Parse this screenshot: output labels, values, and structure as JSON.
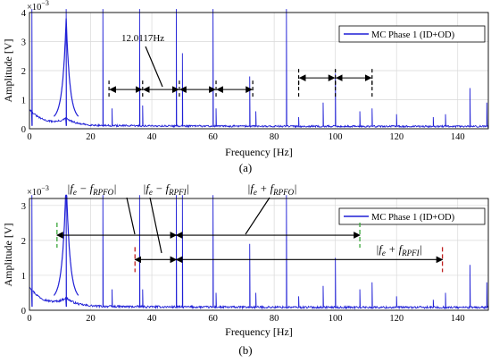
{
  "charts": [
    {
      "id": "a",
      "caption": "(a)",
      "exponent_label": "×10",
      "exponent_power": "−3",
      "ylabel": "Amplitude [V]",
      "xlabel": "Frequency [Hz]",
      "xlim": [
        0,
        150
      ],
      "ylim": [
        0,
        4
      ],
      "xticks": [
        "0",
        "20",
        "40",
        "60",
        "80",
        "100",
        "120",
        "140"
      ],
      "xtick_values": [
        0,
        20,
        40,
        60,
        80,
        100,
        120,
        140
      ],
      "yticks": [
        "0",
        "1",
        "2",
        "3",
        "4"
      ],
      "ytick_values": [
        0,
        1,
        2,
        3,
        4
      ],
      "legend": "MC Phase 1 (ID+OD)",
      "annotation": "12.0117Hz"
    },
    {
      "id": "b",
      "caption": "(b)",
      "exponent_label": "×10",
      "exponent_power": "−3",
      "ylabel": "Amplitude [V]",
      "xlabel": "Frequency [Hz]",
      "xlim": [
        0,
        150
      ],
      "ylim": [
        0,
        3.2
      ],
      "xticks": [
        "0",
        "20",
        "40",
        "60",
        "80",
        "100",
        "120",
        "140"
      ],
      "xtick_values": [
        0,
        20,
        40,
        60,
        80,
        100,
        120,
        140
      ],
      "yticks": [
        "0",
        "1",
        "2",
        "3"
      ],
      "ytick_values": [
        0,
        1,
        2,
        3
      ],
      "legend": "MC Phase 1 (ID+OD)",
      "labels": {
        "fe_minus_rpfo": {
          "pre": "|f",
          "e": "e",
          "op": " − f",
          "sub": "RPFO",
          "post": "|"
        },
        "fe_minus_rpfi": {
          "pre": "|f",
          "e": "e",
          "op": " − f",
          "sub": "RPFI",
          "post": "|"
        },
        "fe_plus_rpfo": {
          "pre": "|f",
          "e": "e",
          "op": " + f",
          "sub": "RPFO",
          "post": "|"
        },
        "fe_plus_rpfi": {
          "pre": "|f",
          "e": "e",
          "op": " + f",
          "sub": "RPFI",
          "post": "|"
        }
      }
    }
  ],
  "chart_data": [
    {
      "type": "line",
      "title": "",
      "xlabel": "Frequency [Hz]",
      "ylabel": "Amplitude [V] (×10^-3)",
      "xlim": [
        0,
        150
      ],
      "ylim": [
        0,
        4
      ],
      "grid": true,
      "legend_position": "top-right",
      "series": [
        {
          "name": "MC Phase 1 (ID+OD)",
          "color": "#1f1fd6",
          "peaks": [
            {
              "x": 0.8,
              "y": 4.2
            },
            {
              "x": 12.0,
              "y": 4.2
            },
            {
              "x": 24.0,
              "y": 4.2
            },
            {
              "x": 27.0,
              "y": 0.7
            },
            {
              "x": 36.0,
              "y": 4.2
            },
            {
              "x": 37.0,
              "y": 0.8
            },
            {
              "x": 48.0,
              "y": 4.2
            },
            {
              "x": 50.0,
              "y": 2.6
            },
            {
              "x": 60.0,
              "y": 4.2
            },
            {
              "x": 61.0,
              "y": 0.7
            },
            {
              "x": 72.0,
              "y": 1.8
            },
            {
              "x": 74.0,
              "y": 0.6
            },
            {
              "x": 84.0,
              "y": 4.2
            },
            {
              "x": 88.0,
              "y": 0.4
            },
            {
              "x": 96.0,
              "y": 0.9
            },
            {
              "x": 100.0,
              "y": 1.9
            },
            {
              "x": 108.0,
              "y": 0.6
            },
            {
              "x": 112.0,
              "y": 0.7
            },
            {
              "x": 120.0,
              "y": 0.5
            },
            {
              "x": 132.0,
              "y": 0.4
            },
            {
              "x": 136.0,
              "y": 0.5
            },
            {
              "x": 144.0,
              "y": 1.4
            },
            {
              "x": 149.5,
              "y": 0.9
            }
          ]
        }
      ],
      "annotations": [
        {
          "text": "12.0117Hz",
          "type": "interval-arrows",
          "x_marks": [
            26,
            37,
            49,
            61,
            73,
            88,
            100,
            112
          ]
        }
      ]
    },
    {
      "type": "line",
      "title": "",
      "xlabel": "Frequency [Hz]",
      "ylabel": "Amplitude [V] (×10^-3)",
      "xlim": [
        0,
        150
      ],
      "ylim": [
        0,
        3.2
      ],
      "grid": true,
      "legend_position": "top-right",
      "series": [
        {
          "name": "MC Phase 1 (ID+OD)",
          "color": "#1f1fd6",
          "peaks": [
            {
              "x": 0.8,
              "y": 3.3
            },
            {
              "x": 12.0,
              "y": 3.3
            },
            {
              "x": 24.0,
              "y": 3.3
            },
            {
              "x": 27.0,
              "y": 0.6
            },
            {
              "x": 36.0,
              "y": 3.3
            },
            {
              "x": 37.0,
              "y": 0.6
            },
            {
              "x": 48.0,
              "y": 3.3
            },
            {
              "x": 50.0,
              "y": 3.3
            },
            {
              "x": 60.0,
              "y": 3.3
            },
            {
              "x": 61.0,
              "y": 0.5
            },
            {
              "x": 72.0,
              "y": 1.9
            },
            {
              "x": 74.0,
              "y": 0.5
            },
            {
              "x": 84.0,
              "y": 3.3
            },
            {
              "x": 88.0,
              "y": 0.4
            },
            {
              "x": 96.0,
              "y": 0.7
            },
            {
              "x": 100.0,
              "y": 1.5
            },
            {
              "x": 108.0,
              "y": 0.6
            },
            {
              "x": 112.0,
              "y": 0.8
            },
            {
              "x": 120.0,
              "y": 0.4
            },
            {
              "x": 132.0,
              "y": 0.3
            },
            {
              "x": 136.0,
              "y": 0.5
            },
            {
              "x": 144.0,
              "y": 1.3
            },
            {
              "x": 149.5,
              "y": 0.8
            }
          ]
        }
      ],
      "annotations": [
        {
          "label": "|fe − fRPFO|",
          "from": 9,
          "to": 48
        },
        {
          "label": "|fe − fRPFI|",
          "from": 34.5,
          "to": 48
        },
        {
          "label": "|fe + fRPFO|",
          "from": 48,
          "to": 108
        },
        {
          "label": "|fe + fRPFI|",
          "from": 48,
          "to": 135
        }
      ]
    }
  ]
}
